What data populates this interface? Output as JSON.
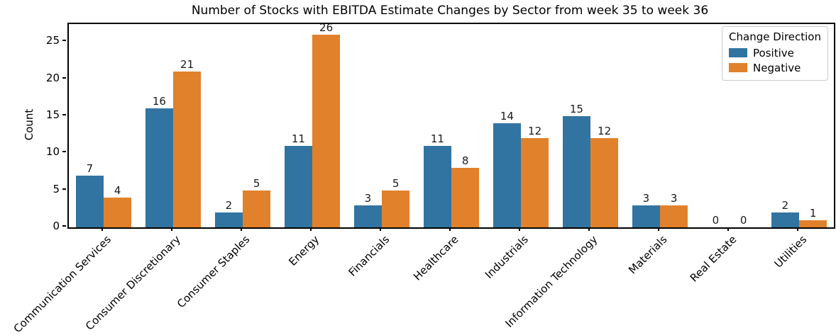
{
  "chart_data": {
    "type": "bar",
    "title": "Number of Stocks with EBITDA Estimate Changes by Sector from week 35 to week 36",
    "ylabel": "Count",
    "legend_title": "Change Direction",
    "legend_position": "upper right",
    "categories": [
      "Communication Services",
      "Consumer Discretionary",
      "Consumer Staples",
      "Energy",
      "Financials",
      "Healthcare",
      "Industrials",
      "Information Technology",
      "Materials",
      "Real Estate",
      "Utilities"
    ],
    "series": [
      {
        "name": "Positive",
        "color": "#3274a1",
        "values": [
          7,
          16,
          2,
          11,
          3,
          11,
          14,
          15,
          3,
          0,
          2
        ]
      },
      {
        "name": "Negative",
        "color": "#e1812c",
        "values": [
          4,
          21,
          5,
          26,
          5,
          8,
          12,
          12,
          3,
          0,
          1
        ]
      }
    ],
    "yticks": [
      0,
      5,
      10,
      15,
      20,
      25
    ],
    "ylim": [
      0,
      27.4
    ],
    "grid": false,
    "bar_value_labels": true,
    "xtick_rotation": 45
  }
}
